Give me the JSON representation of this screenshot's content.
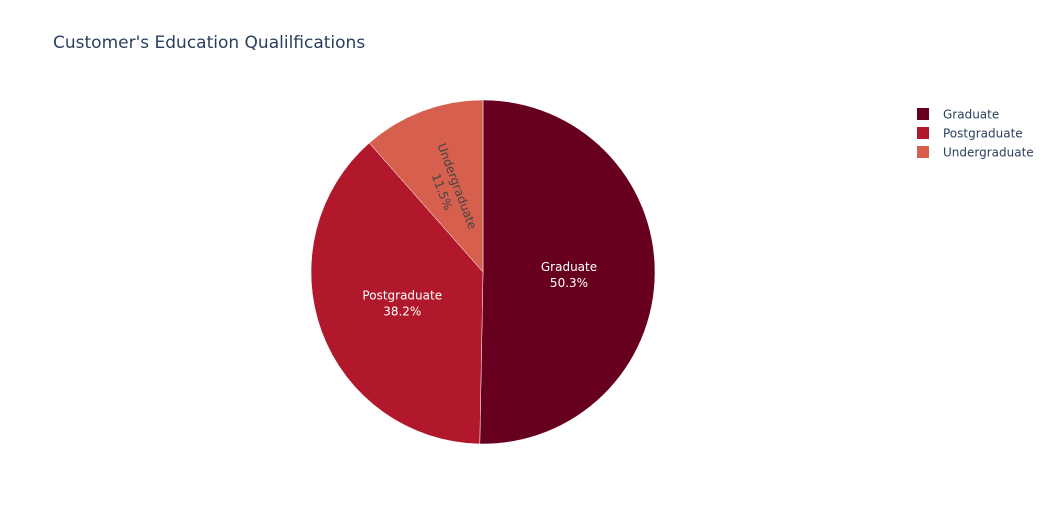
{
  "chart_data": {
    "type": "pie",
    "title": "Customer's Education Qualilfications",
    "categories": [
      "Graduate",
      "Postgraduate",
      "Undergraduate"
    ],
    "values": [
      50.3,
      38.2,
      11.5
    ],
    "percent_labels": [
      "50.3%",
      "38.2%",
      "11.5%"
    ],
    "colors": [
      "#67001f",
      "#b2182b",
      "#d6604d"
    ],
    "label_colors": [
      "#ffffff",
      "#ffffff",
      "#444444"
    ],
    "legend_position": "top-right"
  }
}
